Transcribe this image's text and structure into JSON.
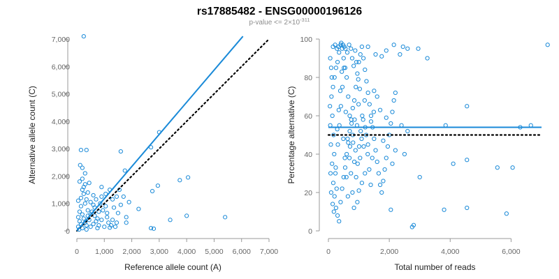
{
  "header": {
    "title": "rs17885482 - ENSG00000196126",
    "subtitle_prefix": "p-value <= 2×10",
    "subtitle_exp": "-311"
  },
  "colors": {
    "points": "#1a8ad8",
    "fit": "#1a8ad8",
    "reference": "#000000",
    "axis": "#999999"
  },
  "chart_data": [
    {
      "type": "scatter",
      "title": "",
      "xlabel": "Reference allele count (A)",
      "ylabel": "Alternative allele count (C)",
      "xlim": [
        0,
        7000
      ],
      "ylim": [
        0,
        7000
      ],
      "xticks": [
        0,
        1000,
        2000,
        3000,
        4000,
        5000,
        6000,
        7000
      ],
      "xtick_labels": [
        "0",
        "1,000",
        "2,000",
        "3,000",
        "4,000",
        "5,000",
        "6,000",
        "7,000"
      ],
      "yticks": [
        0,
        1000,
        2000,
        3000,
        4000,
        5000,
        6000,
        7000
      ],
      "ytick_labels": [
        "0",
        "1,000",
        "2,000",
        "3,000",
        "4,000",
        "5,000",
        "6,000",
        "7,000"
      ],
      "fit_line": {
        "from": [
          0,
          0
        ],
        "to": [
          6050,
          7100
        ],
        "style": "solid"
      },
      "reference_line": {
        "from": [
          0,
          0
        ],
        "to": [
          7000,
          7000
        ],
        "style": "dotted"
      },
      "points": [
        [
          250,
          7100
        ],
        [
          3000,
          3600
        ],
        [
          2700,
          3050
        ],
        [
          1600,
          2900
        ],
        [
          1750,
          2200
        ],
        [
          150,
          2950
        ],
        [
          350,
          2950
        ],
        [
          120,
          2400
        ],
        [
          200,
          2300
        ],
        [
          300,
          2100
        ],
        [
          200,
          1900
        ],
        [
          250,
          1600
        ],
        [
          4050,
          1950
        ],
        [
          3750,
          1850
        ],
        [
          2950,
          1650
        ],
        [
          2750,
          1450
        ],
        [
          900,
          1600
        ],
        [
          1200,
          1500
        ],
        [
          1550,
          1500
        ],
        [
          1050,
          1350
        ],
        [
          1450,
          1250
        ],
        [
          1700,
          1250
        ],
        [
          1300,
          1150
        ],
        [
          2250,
          800
        ],
        [
          1050,
          900
        ],
        [
          1800,
          500
        ],
        [
          5400,
          500
        ],
        [
          4000,
          550
        ],
        [
          3400,
          400
        ],
        [
          2700,
          100
        ],
        [
          2800,
          80
        ],
        [
          1800,
          300
        ],
        [
          1300,
          400
        ],
        [
          1450,
          300
        ],
        [
          1100,
          500
        ],
        [
          800,
          700
        ],
        [
          650,
          850
        ],
        [
          500,
          1050
        ],
        [
          700,
          1150
        ],
        [
          900,
          1250
        ],
        [
          600,
          1300
        ],
        [
          400,
          1400
        ],
        [
          300,
          1000
        ],
        [
          150,
          900
        ],
        [
          100,
          700
        ],
        [
          50,
          500
        ],
        [
          450,
          400
        ],
        [
          300,
          300
        ],
        [
          600,
          250
        ],
        [
          800,
          200
        ],
        [
          1000,
          150
        ],
        [
          1200,
          120
        ],
        [
          500,
          600
        ],
        [
          950,
          750
        ],
        [
          750,
          450
        ],
        [
          400,
          750
        ],
        [
          200,
          600
        ],
        [
          100,
          350
        ],
        [
          50,
          150
        ],
        [
          200,
          100
        ],
        [
          350,
          200
        ],
        [
          700,
          350
        ],
        [
          1100,
          650
        ],
        [
          150,
          1200
        ],
        [
          250,
          1350
        ],
        [
          450,
          1750
        ],
        [
          200,
          1500
        ],
        [
          100,
          1800
        ],
        [
          300,
          1700
        ],
        [
          350,
          1150
        ],
        [
          600,
          950
        ],
        [
          550,
          700
        ],
        [
          1350,
          850
        ],
        [
          1500,
          650
        ],
        [
          1600,
          950
        ],
        [
          1900,
          1050
        ],
        [
          850,
          1000
        ],
        [
          150,
          250
        ],
        [
          80,
          50
        ],
        [
          250,
          450
        ],
        [
          500,
          150
        ],
        [
          650,
          550
        ],
        [
          900,
          400
        ],
        [
          1150,
          300
        ],
        [
          1250,
          200
        ],
        [
          1400,
          150
        ],
        [
          750,
          100
        ],
        [
          350,
          50
        ],
        [
          50,
          1100
        ],
        [
          400,
          550
        ]
      ]
    },
    {
      "type": "scatter",
      "title": "",
      "xlabel": "Total number of reads",
      "ylabel": "Percentage alternative (C)",
      "xlim": [
        0,
        7000
      ],
      "ylim": [
        0,
        100
      ],
      "xticks": [
        0,
        2000,
        4000,
        6000
      ],
      "xtick_labels": [
        "0",
        "2,000",
        "4,000",
        "6,000"
      ],
      "yticks": [
        0,
        20,
        40,
        60,
        80,
        100
      ],
      "ytick_labels": [
        "0",
        "20",
        "40",
        "60",
        "80",
        "100"
      ],
      "fit_line": {
        "from": [
          0,
          54
        ],
        "to": [
          7000,
          54
        ],
        "style": "solid"
      },
      "reference_line": {
        "from": [
          0,
          50
        ],
        "to": [
          7000,
          50
        ],
        "style": "dotted"
      },
      "points": [
        [
          7200,
          97
        ],
        [
          2950,
          95
        ],
        [
          3250,
          90
        ],
        [
          2150,
          97
        ],
        [
          2450,
          96
        ],
        [
          2600,
          95
        ],
        [
          2350,
          92
        ],
        [
          1900,
          94
        ],
        [
          1750,
          91
        ],
        [
          1550,
          92
        ],
        [
          1300,
          96
        ],
        [
          4550,
          65
        ],
        [
          6650,
          55
        ],
        [
          6300,
          54
        ],
        [
          3850,
          55
        ],
        [
          4100,
          35
        ],
        [
          4550,
          37
        ],
        [
          5550,
          33
        ],
        [
          6050,
          33
        ],
        [
          5850,
          9
        ],
        [
          4550,
          12
        ],
        [
          3800,
          11
        ],
        [
          2800,
          3
        ],
        [
          2750,
          2
        ],
        [
          2050,
          11
        ],
        [
          3000,
          28
        ],
        [
          2400,
          55
        ],
        [
          2500,
          40
        ],
        [
          2600,
          52
        ],
        [
          2200,
          42
        ],
        [
          2100,
          35
        ],
        [
          1800,
          47
        ],
        [
          1900,
          59
        ],
        [
          1700,
          63
        ],
        [
          1600,
          70
        ],
        [
          1500,
          73
        ],
        [
          1400,
          57
        ],
        [
          1300,
          45
        ],
        [
          1200,
          30
        ],
        [
          1100,
          25
        ],
        [
          1000,
          21
        ],
        [
          950,
          15
        ],
        [
          850,
          36
        ],
        [
          800,
          50
        ],
        [
          700,
          60
        ],
        [
          650,
          70
        ],
        [
          600,
          80
        ],
        [
          550,
          85
        ],
        [
          500,
          90
        ],
        [
          450,
          95
        ],
        [
          400,
          97
        ],
        [
          350,
          93
        ],
        [
          300,
          88
        ],
        [
          250,
          85
        ],
        [
          200,
          80
        ],
        [
          150,
          75
        ],
        [
          100,
          70
        ],
        [
          50,
          65
        ],
        [
          60,
          55
        ],
        [
          80,
          45
        ],
        [
          120,
          35
        ],
        [
          160,
          25
        ],
        [
          200,
          18
        ],
        [
          250,
          12
        ],
        [
          300,
          8
        ],
        [
          350,
          5
        ],
        [
          400,
          15
        ],
        [
          450,
          22
        ],
        [
          500,
          28
        ],
        [
          550,
          33
        ],
        [
          600,
          40
        ],
        [
          650,
          46
        ],
        [
          700,
          52
        ],
        [
          750,
          58
        ],
        [
          800,
          64
        ],
        [
          850,
          68
        ],
        [
          900,
          75
        ],
        [
          950,
          82
        ],
        [
          1000,
          88
        ],
        [
          1050,
          92
        ],
        [
          1100,
          96
        ],
        [
          1150,
          90
        ],
        [
          1200,
          84
        ],
        [
          1250,
          78
        ],
        [
          1300,
          72
        ],
        [
          1350,
          66
        ],
        [
          1400,
          60
        ],
        [
          1450,
          54
        ],
        [
          1500,
          48
        ],
        [
          1550,
          42
        ],
        [
          1600,
          36
        ],
        [
          1650,
          30
        ],
        [
          1700,
          24
        ],
        [
          1750,
          20
        ],
        [
          1800,
          26
        ],
        [
          1850,
          32
        ],
        [
          1900,
          38
        ],
        [
          1950,
          44
        ],
        [
          2000,
          50
        ],
        [
          2050,
          56
        ],
        [
          2100,
          62
        ],
        [
          2150,
          68
        ],
        [
          2200,
          72
        ],
        [
          150,
          96
        ],
        [
          220,
          97
        ],
        [
          280,
          95
        ],
        [
          330,
          96
        ],
        [
          420,
          98
        ],
        [
          480,
          97
        ],
        [
          520,
          96
        ],
        [
          560,
          95
        ],
        [
          620,
          93
        ],
        [
          680,
          97
        ],
        [
          740,
          95
        ],
        [
          780,
          90
        ],
        [
          830,
          86
        ],
        [
          880,
          94
        ],
        [
          920,
          88
        ],
        [
          980,
          79
        ],
        [
          1030,
          74
        ],
        [
          60,
          90
        ],
        [
          90,
          85
        ],
        [
          110,
          80
        ],
        [
          130,
          60
        ],
        [
          170,
          50
        ],
        [
          190,
          40
        ],
        [
          230,
          30
        ],
        [
          270,
          22
        ],
        [
          310,
          45
        ],
        [
          360,
          55
        ],
        [
          410,
          65
        ],
        [
          460,
          75
        ],
        [
          510,
          85
        ],
        [
          570,
          62
        ],
        [
          630,
          48
        ],
        [
          690,
          38
        ],
        [
          740,
          30
        ],
        [
          790,
          20
        ],
        [
          840,
          12
        ],
        [
          890,
          42
        ],
        [
          940,
          55
        ],
        [
          990,
          66
        ],
        [
          1040,
          38
        ],
        [
          1090,
          48
        ],
        [
          1140,
          58
        ],
        [
          1190,
          68
        ],
        [
          1240,
          50
        ],
        [
          1290,
          40
        ],
        [
          1340,
          32
        ],
        [
          1390,
          24
        ],
        [
          1440,
          38
        ],
        [
          1490,
          62
        ],
        [
          70,
          30
        ],
        [
          90,
          20
        ],
        [
          140,
          14
        ],
        [
          180,
          10
        ],
        [
          240,
          33
        ],
        [
          290,
          53
        ],
        [
          340,
          63
        ],
        [
          390,
          73
        ],
        [
          440,
          83
        ],
        [
          490,
          48
        ],
        [
          540,
          38
        ],
        [
          590,
          28
        ],
        [
          640,
          18
        ],
        [
          710,
          44
        ],
        [
          760,
          56
        ],
        [
          810,
          46
        ],
        [
          860,
          58
        ],
        [
          910,
          28
        ],
        [
          960,
          35
        ],
        [
          1010,
          44
        ],
        [
          1060,
          52
        ],
        [
          1110,
          60
        ],
        [
          1160,
          44
        ],
        [
          1210,
          54
        ]
      ]
    }
  ]
}
